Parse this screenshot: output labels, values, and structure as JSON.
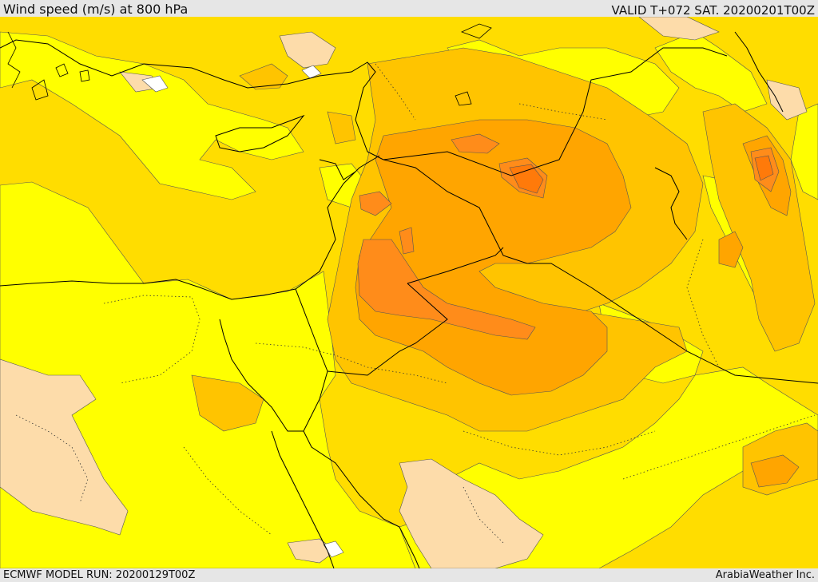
{
  "header": {
    "title": "Wind speed (m/s) at 800 hPa",
    "valid_time": "VALID T+072 SAT. 20200201T00Z"
  },
  "footer": {
    "model_run": "ECMWF MODEL RUN: 20200129T00Z",
    "credit": "ArabiaWeather Inc."
  },
  "palette": {
    "calm": "#ffffff",
    "very_light": "#fddcaa",
    "light": "#ffff00",
    "moderate": "#ffdd00",
    "fresh": "#ffc400",
    "strong": "#ffa500",
    "very_strong": "#ff8c1a",
    "extreme": "#ff7a0a",
    "border": "#000000",
    "contour": "#444444"
  }
}
